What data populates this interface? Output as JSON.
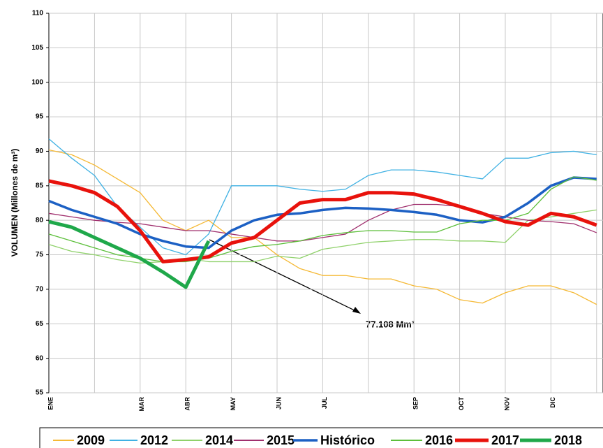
{
  "chart_data": {
    "type": "line",
    "y_label": "VOLUMEN (Millones de m³)",
    "annotation": "77.108 Mm³",
    "categories": [
      "ENE",
      null,
      null,
      null,
      "MAR",
      null,
      "ABR",
      null,
      "MAY",
      null,
      "JUN",
      null,
      "JUL",
      null,
      null,
      null,
      "SEP",
      null,
      "OCT",
      null,
      "NOV",
      null,
      "DIC",
      null,
      null
    ],
    "ylim": [
      55,
      110
    ],
    "yticks": [
      55,
      60,
      65,
      70,
      75,
      80,
      85,
      90,
      95,
      100,
      105,
      110
    ],
    "grid": true,
    "series": [
      {
        "name": "2009",
        "color": "#f5b935",
        "line_width": 1.3,
        "values": [
          90.2,
          89.5,
          88,
          86,
          84,
          80,
          78.5,
          80,
          77.5,
          77.5,
          75,
          73,
          72,
          72,
          71.5,
          71.5,
          70.5,
          70,
          68.5,
          68,
          69.5,
          70.5,
          70.5,
          69.5,
          67.8
        ]
      },
      {
        "name": "2012",
        "color": "#3fb1e3",
        "line_width": 1.3,
        "values": [
          91.8,
          89,
          86.5,
          82,
          79,
          76,
          75,
          78,
          85,
          85,
          85,
          84.5,
          84.2,
          84.5,
          86.5,
          87.3,
          87.3,
          87,
          86.5,
          86,
          89,
          89,
          89.8,
          90,
          89.5
        ]
      },
      {
        "name": "2014",
        "color": "#8fd16a",
        "line_width": 1.3,
        "values": [
          76.5,
          75.5,
          75,
          74.3,
          73.8,
          74,
          74.5,
          74,
          74,
          74,
          74.8,
          74.5,
          75.8,
          76.3,
          76.8,
          77,
          77.2,
          77.2,
          77,
          77,
          76.8,
          80,
          80.5,
          81,
          81.5
        ]
      },
      {
        "name": "2015",
        "color": "#a0306e",
        "line_width": 1.3,
        "values": [
          81,
          80.5,
          80,
          79.7,
          79.5,
          79,
          78.5,
          78.5,
          78,
          77.5,
          77,
          77,
          77.5,
          78,
          80,
          81.5,
          82.3,
          82.3,
          82,
          81,
          80.5,
          80,
          79.8,
          79.5,
          78.2
        ]
      },
      {
        "name": "Histórico",
        "color": "#1c60c4",
        "line_width": 3.5,
        "values": [
          82.8,
          81.5,
          80.5,
          79.5,
          78,
          77,
          76.2,
          76,
          78.5,
          80,
          80.8,
          81,
          81.5,
          81.8,
          81.7,
          81.5,
          81.2,
          80.8,
          80,
          79.7,
          80.5,
          82.5,
          85,
          86.2,
          86
        ]
      },
      {
        "name": "2016",
        "color": "#5cbf3a",
        "line_width": 1.3,
        "values": [
          78,
          77,
          76,
          75,
          74.5,
          74,
          74,
          74.5,
          75.5,
          76.2,
          76.5,
          77,
          77.8,
          78.2,
          78.5,
          78.5,
          78.3,
          78.3,
          79.5,
          80,
          80,
          81,
          84.5,
          86.3,
          85.8
        ]
      },
      {
        "name": "2017",
        "color": "#e8120c",
        "line_width": 5,
        "values": [
          85.7,
          85,
          84,
          82,
          78.5,
          74,
          74.3,
          74.7,
          76.7,
          77.5,
          80,
          82.5,
          83,
          83,
          84,
          84,
          83.8,
          83,
          82,
          81,
          79.8,
          79.3,
          81,
          80.5,
          79.3
        ]
      },
      {
        "name": "2018",
        "color": "#1fa84a",
        "line_width": 5,
        "values": [
          79.8,
          79,
          77.5,
          76,
          74.5,
          72.5,
          70.3,
          77,
          null,
          null,
          null,
          null,
          null,
          null,
          null,
          null,
          null,
          null,
          null,
          null,
          null,
          null,
          null,
          null,
          null
        ]
      }
    ]
  }
}
